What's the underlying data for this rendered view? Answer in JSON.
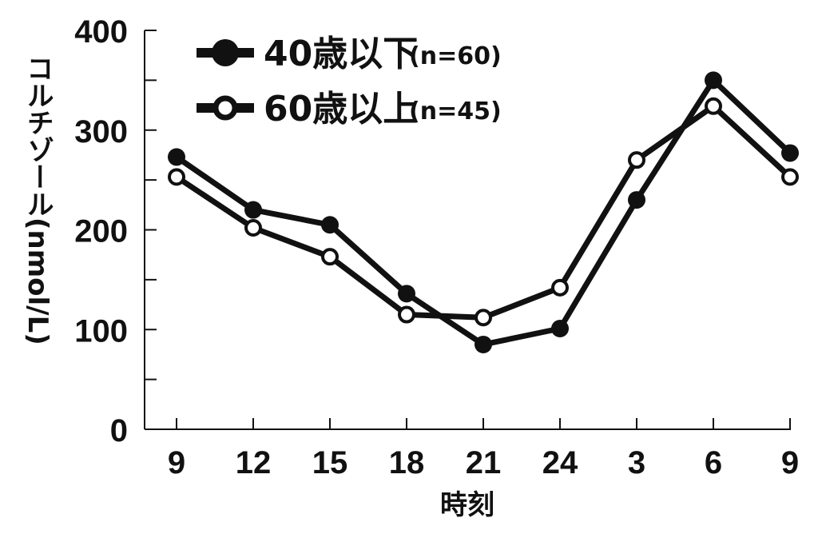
{
  "chart_data": {
    "type": "line",
    "xlabel": "時刻",
    "ylabel": "コルチゾール(nmol/L)",
    "categories": [
      "9",
      "12",
      "15",
      "18",
      "21",
      "24",
      "3",
      "6",
      "9"
    ],
    "ylim": [
      0,
      400
    ],
    "yticks": [
      "0",
      "100",
      "200",
      "300",
      "400"
    ],
    "grid": false,
    "legend_position": "top-left",
    "series": [
      {
        "name": "40歳以下",
        "note": "(n=60)",
        "marker": "filled-circle",
        "color": "#111111",
        "values": [
          273,
          220,
          205,
          136,
          85,
          101,
          230,
          350,
          277
        ]
      },
      {
        "name": "60歳以上",
        "note": "(n=45)",
        "marker": "open-circle",
        "color": "#111111",
        "values": [
          253,
          202,
          173,
          115,
          112,
          142,
          270,
          324,
          253
        ]
      }
    ]
  }
}
